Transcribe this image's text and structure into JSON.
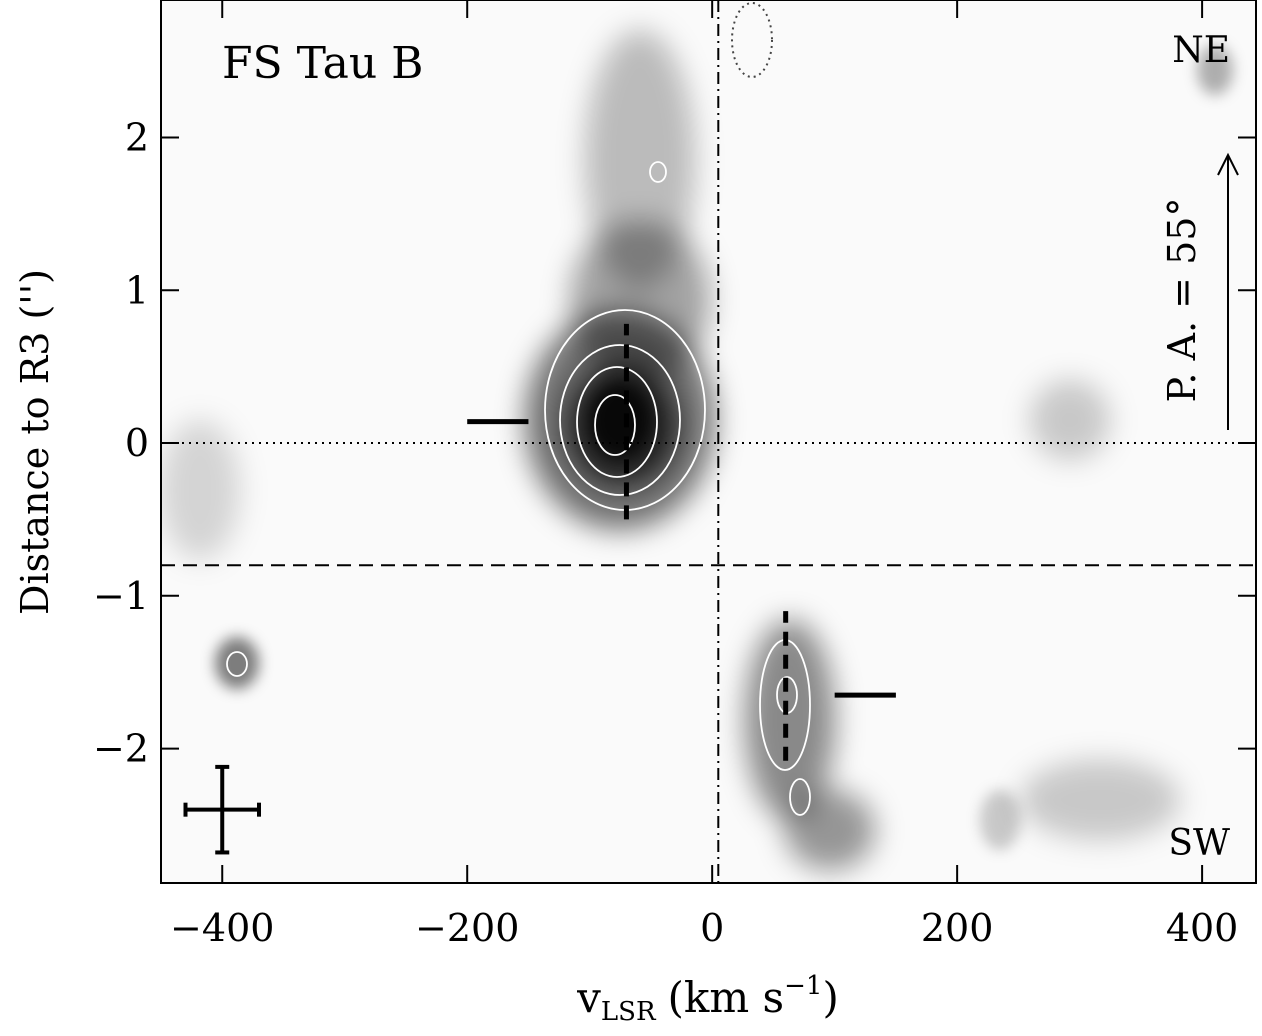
{
  "chart_data": {
    "type": "pv-diagram",
    "annotations": {
      "object": "FS Tau B",
      "ne": "NE",
      "sw": "SW",
      "pa": "P. A. = 55°"
    },
    "ylabel": "Distance to R3 ('')",
    "xlabel": {
      "symbol": "v",
      "subscript": "LSR",
      "unit": "(km s",
      "exponent": "−1",
      "close": ")"
    },
    "xlim": [
      -450,
      444
    ],
    "ylim": [
      -2.88,
      2.9
    ],
    "xticks": [
      {
        "value": -400,
        "label": "−400"
      },
      {
        "value": -200,
        "label": "−200"
      },
      0,
      200,
      400
    ],
    "yticks": [
      {
        "value": -2,
        "label": "−2"
      },
      {
        "value": -1,
        "label": "−1"
      },
      0,
      1,
      2
    ],
    "reference_lines": {
      "y_dotted": 0,
      "y_dashed": -0.8,
      "x_dashdot": 5
    },
    "velocity_bars": [
      {
        "x": [
          -200,
          -150
        ],
        "y": 0.14
      },
      {
        "x": [
          100,
          150
        ],
        "y": -1.65
      }
    ],
    "position_bars": [
      {
        "x": -70,
        "y": [
          -0.5,
          0.78
        ]
      },
      {
        "x": 60,
        "y": [
          -2.08,
          -1.1
        ]
      }
    ],
    "resolution_cross": {
      "x": -400,
      "y": -2.4,
      "xerr": 30,
      "yerr": 0.28
    }
  }
}
